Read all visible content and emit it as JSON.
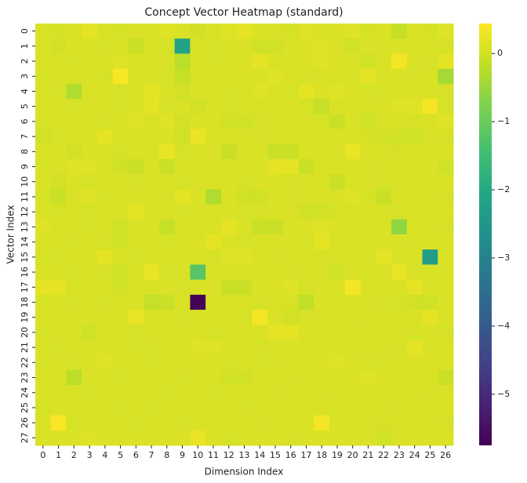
{
  "chart_data": {
    "type": "heatmap",
    "title": "Concept Vector Heatmap (standard)",
    "x_label": "Dimension Index",
    "y_label": "Vector Index",
    "x_categories": [
      "0",
      "1",
      "2",
      "3",
      "4",
      "5",
      "6",
      "7",
      "8",
      "9",
      "10",
      "11",
      "12",
      "13",
      "14",
      "15",
      "16",
      "17",
      "18",
      "19",
      "20",
      "21",
      "22",
      "23",
      "24",
      "25",
      "26"
    ],
    "y_categories": [
      "0",
      "1",
      "2",
      "3",
      "4",
      "5",
      "6",
      "7",
      "8",
      "9",
      "10",
      "11",
      "12",
      "13",
      "14",
      "15",
      "16",
      "17",
      "18",
      "19",
      "20",
      "21",
      "22",
      "23",
      "24",
      "25",
      "26",
      "27"
    ],
    "colormap": "viridis",
    "clim": [
      -5.75,
      0.44
    ],
    "cticks": [
      0,
      {
        "value": -1,
        "label": "−1"
      },
      {
        "value": -2,
        "label": "−2"
      },
      {
        "value": -3,
        "label": "−3"
      },
      {
        "value": -4,
        "label": "−4"
      },
      {
        "value": -5,
        "label": "−5"
      }
    ],
    "values": [
      [
        0.1,
        0.05,
        0.1,
        0.2,
        0.1,
        0.05,
        0.1,
        0.1,
        0.15,
        0.1,
        0,
        0.1,
        0.15,
        0.2,
        0.1,
        0.1,
        0.05,
        0.15,
        0.1,
        0.1,
        0.15,
        0.05,
        0.1,
        -0.1,
        0.1,
        0.05,
        0.15
      ],
      [
        0.1,
        0,
        0.1,
        0.1,
        0.05,
        0.1,
        -0.05,
        0.1,
        0.05,
        -2.2,
        0.1,
        0.05,
        0.1,
        0.1,
        0,
        0,
        0.1,
        0.1,
        0.15,
        0.1,
        0,
        0.1,
        0.05,
        0.1,
        0.1,
        0.1,
        0.05
      ],
      [
        0.1,
        0.1,
        0.05,
        0.1,
        0.1,
        0.15,
        0.1,
        0.1,
        0.1,
        -0.2,
        0.1,
        0.05,
        0.1,
        0.1,
        0.2,
        0.1,
        0.1,
        0.1,
        0.15,
        0.1,
        0.1,
        0,
        0.1,
        0.35,
        0.1,
        0.05,
        0.2
      ],
      [
        0.05,
        0.1,
        0.1,
        0.1,
        0.05,
        0.4,
        0.1,
        0.1,
        0.05,
        -0.1,
        0.1,
        0.1,
        0.1,
        0.1,
        0.1,
        0.15,
        0.1,
        0.05,
        0.1,
        0.1,
        0.1,
        0.2,
        0.1,
        0.1,
        0.05,
        0.1,
        -0.4
      ],
      [
        0.1,
        0.05,
        -0.3,
        0.1,
        0.1,
        0.05,
        0.1,
        0.2,
        0.1,
        0,
        0.1,
        0.1,
        0.05,
        0.1,
        0.15,
        0.1,
        0.05,
        0.2,
        0.1,
        0.15,
        0.1,
        0.05,
        0.05,
        0.1,
        0.1,
        0.1,
        0.05
      ],
      [
        0.1,
        0.1,
        0.05,
        0.1,
        0.1,
        0.05,
        0.1,
        0.2,
        0.05,
        0.1,
        0,
        0.1,
        0.05,
        0.1,
        0.1,
        0.1,
        0.1,
        0.05,
        -0.1,
        0.1,
        0.1,
        0.05,
        0.1,
        0.15,
        0.15,
        0.35,
        0.05
      ],
      [
        0.05,
        0.1,
        0.1,
        0.1,
        0.05,
        0.1,
        0.15,
        0.1,
        0.15,
        0,
        0.1,
        0.1,
        0,
        0,
        0.05,
        0.1,
        0.1,
        0.1,
        0.05,
        -0.05,
        0.1,
        0,
        0.1,
        0.1,
        0.05,
        0.1,
        0.15
      ],
      [
        0,
        0.05,
        0.1,
        0.1,
        0.2,
        0.1,
        0.1,
        0.1,
        0.1,
        0,
        0.25,
        0.1,
        0.1,
        0.1,
        0.05,
        0.1,
        0.1,
        0.1,
        0.1,
        0.1,
        0.1,
        0.05,
        0,
        0,
        0,
        0.1,
        0.05
      ],
      [
        0.1,
        0.1,
        0,
        0.1,
        0.1,
        0.05,
        0.1,
        0.1,
        0.25,
        0.05,
        0.1,
        0.1,
        -0.05,
        0.1,
        0.1,
        -0.05,
        -0.05,
        0.1,
        0.1,
        0.1,
        0.25,
        0.1,
        0.1,
        0.05,
        0.1,
        0.1,
        0.1
      ],
      [
        0.05,
        0.1,
        0.15,
        0.15,
        0.1,
        0,
        -0.05,
        0.1,
        -0.05,
        0.1,
        0.1,
        0.1,
        0.1,
        0.1,
        0.1,
        0.2,
        0.2,
        -0.05,
        0.1,
        0.1,
        0.1,
        0.1,
        0.05,
        0.1,
        0.1,
        0.1,
        0
      ],
      [
        0.1,
        0,
        0.1,
        0.05,
        0.1,
        0.1,
        0.05,
        0.1,
        0.1,
        0.05,
        0.1,
        0.1,
        0.1,
        0.05,
        0.1,
        0.1,
        0.05,
        0.1,
        0.1,
        -0.05,
        0.1,
        0.1,
        0.05,
        0.1,
        0.1,
        0.1,
        0.1
      ],
      [
        0.05,
        -0.05,
        0.1,
        0.15,
        0.05,
        0.1,
        0.1,
        0.1,
        0.05,
        0.2,
        0.1,
        -0.3,
        0.1,
        0,
        0,
        0.1,
        0.05,
        0.1,
        0.1,
        0.1,
        0.15,
        0.05,
        -0.05,
        0.1,
        0.1,
        0.1,
        0.05
      ],
      [
        0.1,
        0.05,
        0.1,
        0.05,
        0.1,
        0.1,
        0.2,
        0.1,
        0.1,
        0.05,
        0.1,
        0.1,
        0.1,
        0.05,
        0.05,
        0.1,
        0.1,
        0,
        0,
        0.05,
        0.1,
        0.1,
        0.1,
        0.05,
        0.1,
        0.1,
        0.1
      ],
      [
        0.15,
        0.1,
        0.1,
        0.05,
        0.1,
        0,
        0.1,
        0.1,
        -0.1,
        0.1,
        0.1,
        0.1,
        0.2,
        0.1,
        -0.05,
        -0.05,
        0.1,
        0.1,
        0.15,
        0.1,
        0.1,
        0.1,
        0.1,
        -0.6,
        0.1,
        0.1,
        0.05
      ],
      [
        0.1,
        0.1,
        0.05,
        0.1,
        0.05,
        0,
        0.1,
        0.1,
        0.05,
        0.1,
        0.1,
        0.2,
        0.1,
        0.05,
        0.1,
        0.1,
        0.1,
        0.05,
        0.2,
        0.1,
        0.1,
        0.1,
        0.1,
        0.1,
        0.05,
        0.1,
        0.1
      ],
      [
        0.05,
        0.05,
        0.1,
        0.1,
        0.2,
        0.1,
        0.05,
        0.1,
        0.1,
        0.1,
        0.1,
        0.05,
        0.15,
        0.15,
        0.1,
        0.05,
        0.1,
        0.1,
        0.05,
        0.1,
        0.1,
        0.1,
        0.2,
        0.1,
        0.1,
        -2.3,
        0.1
      ],
      [
        0.1,
        0.1,
        0.05,
        0.1,
        0.05,
        0,
        0.1,
        0.25,
        0.05,
        0.1,
        -1.2,
        0.1,
        0.1,
        0.1,
        0.1,
        0.1,
        0.05,
        0.1,
        0.1,
        0,
        0.1,
        0.05,
        0.1,
        0.25,
        0.1,
        0.05,
        0.1
      ],
      [
        0.2,
        0.2,
        0.05,
        0.1,
        0.1,
        0,
        0.1,
        0.1,
        0.1,
        0.05,
        0.1,
        0.1,
        -0.05,
        -0.05,
        0.1,
        0.1,
        0.15,
        0.05,
        0.1,
        0.1,
        0.35,
        0.1,
        0.1,
        0.1,
        0.2,
        0.1,
        0.1
      ],
      [
        0.05,
        0.1,
        0.05,
        0.1,
        0.05,
        0.1,
        0.1,
        -0.1,
        -0.05,
        0.1,
        -5.7,
        0.1,
        0.1,
        0.1,
        0.05,
        0.1,
        0.05,
        -0.15,
        0.1,
        0.05,
        0.1,
        0.1,
        0.05,
        0.05,
        0,
        0,
        0.1
      ],
      [
        0.1,
        0.1,
        0.1,
        0.1,
        0.1,
        0.1,
        0.25,
        0.1,
        0.1,
        0.05,
        0.1,
        0.1,
        0.1,
        0.05,
        0.35,
        0.1,
        0,
        0.05,
        0.1,
        0.1,
        0.1,
        0.05,
        0.1,
        0.1,
        0.1,
        0.2,
        0.1
      ],
      [
        0.05,
        0.1,
        0.1,
        0,
        0.1,
        0.1,
        0.05,
        0.1,
        0.1,
        0.1,
        0.1,
        0.05,
        0.1,
        0.1,
        0.1,
        0.2,
        0.2,
        0.1,
        0.1,
        0.1,
        0.05,
        0.1,
        0.1,
        0.1,
        0.05,
        0.1,
        0.05
      ],
      [
        0.1,
        0.05,
        0.1,
        0.1,
        0.1,
        0.1,
        0.05,
        0.05,
        0.1,
        0.1,
        0.15,
        0.15,
        0.1,
        0.1,
        0.05,
        0.1,
        0.1,
        0.1,
        0.1,
        0.1,
        0.05,
        0.1,
        0.1,
        0.05,
        0.2,
        0.1,
        0.1
      ],
      [
        0.05,
        0.1,
        0.05,
        0.1,
        0.15,
        0.1,
        0.1,
        0.05,
        0.1,
        0.1,
        0.1,
        0.1,
        0.05,
        0.1,
        0.05,
        0.05,
        0.1,
        0.1,
        0.1,
        0.15,
        0.1,
        0.05,
        0.05,
        0.1,
        0.1,
        0.1,
        0.1
      ],
      [
        0.1,
        0.1,
        -0.2,
        0.1,
        0.1,
        0.05,
        0.1,
        0.1,
        0.1,
        0.05,
        0.1,
        0.1,
        0,
        0,
        0.1,
        0.1,
        0.05,
        0.1,
        0.1,
        0.1,
        0.1,
        0.15,
        0.1,
        0.1,
        0.1,
        0.1,
        -0.05
      ],
      [
        0.1,
        0.1,
        0.1,
        0.05,
        0.1,
        0.1,
        0.1,
        0.1,
        0.05,
        0.1,
        0.1,
        0.05,
        0.1,
        0.1,
        0.1,
        0.05,
        0.1,
        0.1,
        0.05,
        0.1,
        0.1,
        0.1,
        0.1,
        0.1,
        0.1,
        0.05,
        0.1
      ],
      [
        0.05,
        0.1,
        0.1,
        0.1,
        0.1,
        0.05,
        0.1,
        0.05,
        0.1,
        0.1,
        0.1,
        0.1,
        0.1,
        0.05,
        0.1,
        0.1,
        0.1,
        0.1,
        0.1,
        0.05,
        0.1,
        0.1,
        0.1,
        0.05,
        0.1,
        0.1,
        0.1
      ],
      [
        0.1,
        0.4,
        0.05,
        0.1,
        0.1,
        0.1,
        0.05,
        0.1,
        0.1,
        0.05,
        0.1,
        0.1,
        0.1,
        0.1,
        0.05,
        0.1,
        0.1,
        0.1,
        0.35,
        0.1,
        0.1,
        0.1,
        0.05,
        0.1,
        0.1,
        0.1,
        0.05
      ],
      [
        0.1,
        0.1,
        0.1,
        0.15,
        0.1,
        0.1,
        0.1,
        0.1,
        0.1,
        0.1,
        0.25,
        0.1,
        0.05,
        0.1,
        0.1,
        0.1,
        0.05,
        0.1,
        0.1,
        0.1,
        0.1,
        0.1,
        0,
        0.1,
        0.1,
        0.1,
        0.1
      ]
    ]
  }
}
